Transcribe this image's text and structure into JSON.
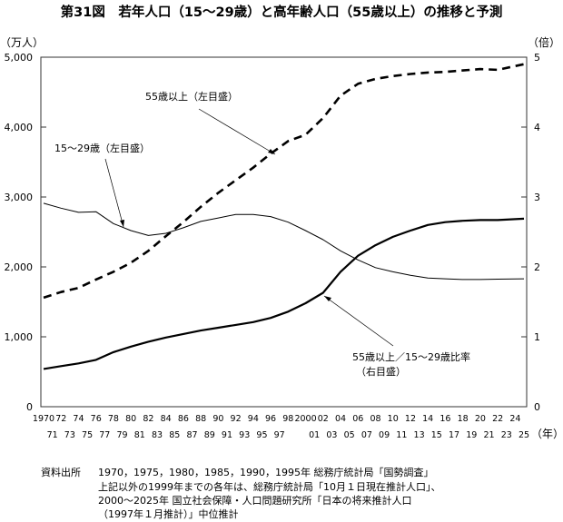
{
  "chart_data": {
    "type": "line",
    "title": "第31図　若年人口（15～29歳）と高年齢人口（55歳以上）の推移と予測",
    "ylabel_left": "（万人）",
    "ylabel_right": "（倍）",
    "xlabel": "（年）",
    "ylim_left": [
      0,
      5000
    ],
    "ylim_right": [
      0,
      5
    ],
    "yticks_left": [
      "0",
      "1,000",
      "2,000",
      "3,000",
      "4,000",
      "5,000"
    ],
    "yticks_right": [
      "0",
      "1",
      "2",
      "3",
      "4",
      "5"
    ],
    "xlim": [
      1970,
      2025
    ],
    "xticks_row1": [
      "1970",
      "72",
      "74",
      "76",
      "78",
      "80",
      "82",
      "84",
      "86",
      "88",
      "90",
      "92",
      "94",
      "96",
      "98",
      "2000",
      "02",
      "04",
      "06",
      "08",
      "10",
      "12",
      "14",
      "16",
      "18",
      "20",
      "22",
      "24"
    ],
    "xticks_row2": [
      "71",
      "73",
      "75",
      "77",
      "79",
      "81",
      "83",
      "85",
      "87",
      "89",
      "91",
      "93",
      "95",
      "97",
      "01",
      "03",
      "05",
      "07",
      "09",
      "11",
      "13",
      "15",
      "17",
      "19",
      "21",
      "23",
      "25"
    ],
    "grid": false,
    "x": [
      1970,
      1972,
      1974,
      1976,
      1978,
      1980,
      1982,
      1984,
      1986,
      1988,
      1990,
      1992,
      1994,
      1996,
      1998,
      2000,
      2002,
      2004,
      2006,
      2008,
      2010,
      2012,
      2014,
      2016,
      2018,
      2020,
      2022,
      2025
    ],
    "series": [
      {
        "name": "15～29歳（左目盛）",
        "axis": "left",
        "style": "thin-solid",
        "values": [
          2910,
          2840,
          2780,
          2790,
          2620,
          2520,
          2450,
          2480,
          2560,
          2650,
          2700,
          2750,
          2750,
          2720,
          2640,
          2520,
          2390,
          2230,
          2100,
          1990,
          1930,
          1880,
          1840,
          1830,
          1820,
          1820,
          1825,
          1830
        ]
      },
      {
        "name": "55歳以上（左目盛）",
        "axis": "left",
        "style": "dashed",
        "values": [
          1560,
          1640,
          1700,
          1820,
          1930,
          2060,
          2230,
          2440,
          2640,
          2860,
          3060,
          3240,
          3420,
          3620,
          3800,
          3890,
          4130,
          4450,
          4620,
          4690,
          4730,
          4760,
          4780,
          4790,
          4810,
          4830,
          4820,
          4900
        ]
      },
      {
        "name": "55歳以上／15～29歳比率（右目盛）",
        "axis": "right",
        "style": "thick-solid",
        "values": [
          0.54,
          0.58,
          0.62,
          0.67,
          0.78,
          0.86,
          0.93,
          0.99,
          1.04,
          1.09,
          1.13,
          1.17,
          1.21,
          1.27,
          1.36,
          1.48,
          1.63,
          1.93,
          2.16,
          2.31,
          2.43,
          2.52,
          2.6,
          2.64,
          2.66,
          2.67,
          2.67,
          2.69
        ]
      }
    ],
    "annotations": {
      "youth": "15～29歳（左目盛）",
      "elderly": "55歳以上（左目盛）",
      "ratio_line1": "55歳以上／15～29歳比率",
      "ratio_line2": "（右目盛）"
    }
  },
  "source": {
    "label": "資料出所",
    "lines": [
      "1970，1975，1980，1985，1990，1995年 総務庁統計局「国勢調査」",
      "上記以外の1999年までの各年は、総務庁統計局「10月１日現在推計人口」、",
      "2000～2025年 国立社会保障・人口問題研究所「日本の将来推計人口",
      "（1997年１月推計）」中位推計"
    ]
  }
}
